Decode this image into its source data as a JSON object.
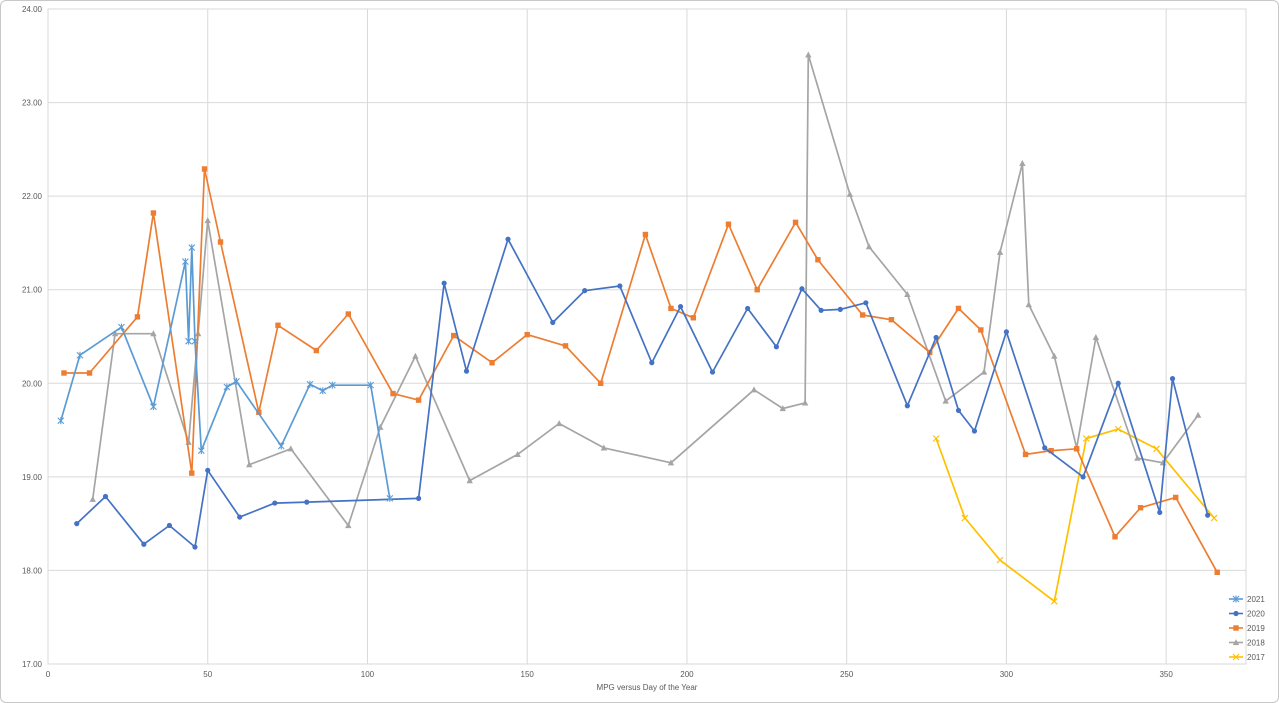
{
  "chart_data": {
    "type": "line",
    "title": "",
    "xlabel": "MPG versus Day of the Year",
    "ylabel": "",
    "xlim": [
      0,
      375
    ],
    "ylim": [
      17,
      24
    ],
    "x_ticks": [
      "0",
      "50",
      "100",
      "150",
      "200",
      "250",
      "300",
      "350"
    ],
    "y_ticks": [
      "17.00",
      "18.00",
      "19.00",
      "20.00",
      "21.00",
      "22.00",
      "23.00",
      "24.00"
    ],
    "grid": true,
    "legend_position": "bottom-right",
    "series": [
      {
        "name": "2021",
        "color": "#5b9bd5",
        "marker": "star",
        "points": [
          [
            4,
            19.6
          ],
          [
            10,
            20.3
          ],
          [
            23,
            20.6
          ],
          [
            33,
            19.75
          ],
          [
            43,
            21.3
          ],
          [
            44,
            20.45
          ],
          [
            45,
            21.45
          ],
          [
            46,
            20.45
          ],
          [
            48,
            19.28
          ],
          [
            56,
            19.96
          ],
          [
            59,
            20.02
          ],
          [
            73,
            19.33
          ],
          [
            82,
            19.99
          ],
          [
            86,
            19.92
          ],
          [
            89,
            19.98
          ],
          [
            101,
            19.98
          ],
          [
            107,
            18.77
          ]
        ]
      },
      {
        "name": "2020",
        "color": "#4472c4",
        "marker": "circle",
        "points": [
          [
            9,
            18.5
          ],
          [
            18,
            18.79
          ],
          [
            30,
            18.28
          ],
          [
            38,
            18.48
          ],
          [
            46,
            18.25
          ],
          [
            50,
            19.07
          ],
          [
            60,
            18.57
          ],
          [
            71,
            18.72
          ],
          [
            81,
            18.73
          ],
          [
            116,
            18.77
          ],
          [
            124,
            21.07
          ],
          [
            131,
            20.13
          ],
          [
            144,
            21.54
          ],
          [
            158,
            20.65
          ],
          [
            168,
            20.99
          ],
          [
            179,
            21.04
          ],
          [
            189,
            20.22
          ],
          [
            198,
            20.82
          ],
          [
            208,
            20.12
          ],
          [
            219,
            20.8
          ],
          [
            228,
            20.39
          ],
          [
            236,
            21.01
          ],
          [
            242,
            20.78
          ],
          [
            248,
            20.79
          ],
          [
            256,
            20.86
          ],
          [
            269,
            19.76
          ],
          [
            278,
            20.49
          ],
          [
            285,
            19.71
          ],
          [
            290,
            19.49
          ],
          [
            300,
            20.55
          ],
          [
            312,
            19.31
          ],
          [
            324,
            19.0
          ],
          [
            335,
            20.0
          ],
          [
            348,
            18.62
          ],
          [
            352,
            20.05
          ],
          [
            363,
            18.59
          ]
        ]
      },
      {
        "name": "2019",
        "color": "#ed7d31",
        "marker": "square",
        "points": [
          [
            5,
            20.11
          ],
          [
            13,
            20.11
          ],
          [
            28,
            20.71
          ],
          [
            33,
            21.82
          ],
          [
            45,
            19.04
          ],
          [
            49,
            22.29
          ],
          [
            54,
            21.51
          ],
          [
            66,
            19.69
          ],
          [
            72,
            20.62
          ],
          [
            84,
            20.35
          ],
          [
            94,
            20.74
          ],
          [
            108,
            19.89
          ],
          [
            116,
            19.82
          ],
          [
            127,
            20.51
          ],
          [
            139,
            20.22
          ],
          [
            150,
            20.52
          ],
          [
            162,
            20.4
          ],
          [
            173,
            20.0
          ],
          [
            187,
            21.59
          ],
          [
            195,
            20.8
          ],
          [
            202,
            20.7
          ],
          [
            213,
            21.7
          ],
          [
            222,
            21.0
          ],
          [
            234,
            21.72
          ],
          [
            241,
            21.32
          ],
          [
            255,
            20.73
          ],
          [
            264,
            20.68
          ],
          [
            276,
            20.33
          ],
          [
            285,
            20.8
          ],
          [
            292,
            20.57
          ],
          [
            306,
            19.24
          ],
          [
            314,
            19.28
          ],
          [
            322,
            19.3
          ],
          [
            334,
            18.36
          ],
          [
            342,
            18.67
          ],
          [
            353,
            18.78
          ],
          [
            366,
            17.98
          ]
        ]
      },
      {
        "name": "2018",
        "color": "#a5a5a5",
        "marker": "triangle",
        "points": [
          [
            14,
            18.76
          ],
          [
            21,
            20.53
          ],
          [
            33,
            20.53
          ],
          [
            44,
            19.37
          ],
          [
            47,
            20.53
          ],
          [
            50,
            21.74
          ],
          [
            63,
            19.13
          ],
          [
            76,
            19.3
          ],
          [
            94,
            18.48
          ],
          [
            104,
            19.53
          ],
          [
            115,
            20.29
          ],
          [
            132,
            18.96
          ],
          [
            147,
            19.24
          ],
          [
            160,
            19.57
          ],
          [
            174,
            19.31
          ],
          [
            195,
            19.15
          ],
          [
            221,
            19.93
          ],
          [
            230,
            19.73
          ],
          [
            237,
            19.79
          ],
          [
            238,
            23.51
          ],
          [
            251,
            22.02
          ],
          [
            257,
            21.46
          ],
          [
            269,
            20.95
          ],
          [
            281,
            19.81
          ],
          [
            293,
            20.12
          ],
          [
            298,
            21.4
          ],
          [
            305,
            22.35
          ],
          [
            307,
            20.84
          ],
          [
            315,
            20.29
          ],
          [
            322,
            19.31
          ],
          [
            328,
            20.49
          ],
          [
            341,
            19.2
          ],
          [
            349,
            19.15
          ],
          [
            360,
            19.66
          ]
        ]
      },
      {
        "name": "2017",
        "color": "#ffc000",
        "marker": "x",
        "points": [
          [
            278,
            19.41
          ],
          [
            287,
            18.56
          ],
          [
            298,
            18.11
          ],
          [
            315,
            17.67
          ],
          [
            325,
            19.41
          ],
          [
            335,
            19.51
          ],
          [
            347,
            19.3
          ],
          [
            365,
            18.56
          ]
        ]
      }
    ]
  }
}
